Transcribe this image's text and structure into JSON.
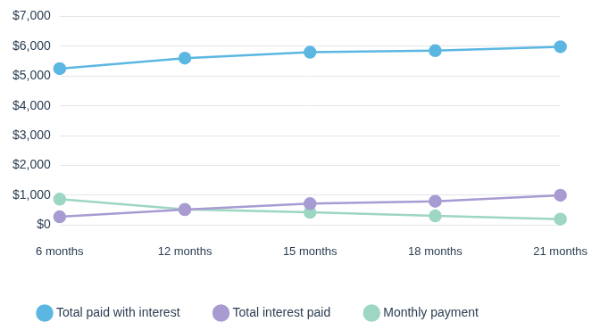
{
  "chart_data": {
    "type": "line",
    "categories": [
      "6 months",
      "12 months",
      "15 months",
      "18 months",
      "21 months"
    ],
    "series": [
      {
        "name": "Total paid with interest",
        "color": "#5bb7e2",
        "marker": "circle",
        "values": [
          5250,
          5600,
          5800,
          5850,
          5980
        ]
      },
      {
        "name": "Total interest paid",
        "color": "#a89bd2",
        "marker": "circle",
        "values": [
          280,
          520,
          720,
          800,
          1000
        ]
      },
      {
        "name": "Monthly payment",
        "color": "#9dd6c2",
        "marker": "circle",
        "values": [
          870,
          530,
          430,
          310,
          200
        ]
      }
    ],
    "ylim": [
      0,
      7000
    ],
    "yticks": [
      {
        "value": 0,
        "label": "$0"
      },
      {
        "value": 1000,
        "label": "$1,000"
      },
      {
        "value": 2000,
        "label": "$2,000"
      },
      {
        "value": 3000,
        "label": "$3,000"
      },
      {
        "value": 4000,
        "label": "$4,000"
      },
      {
        "value": 5000,
        "label": "$5,000"
      },
      {
        "value": 6000,
        "label": "$6,000"
      },
      {
        "value": 7000,
        "label": "$7,000"
      }
    ],
    "grid": true,
    "legend": "bottom"
  }
}
